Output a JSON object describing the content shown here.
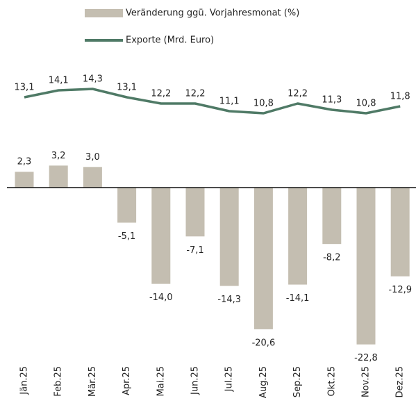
{
  "chart_data": {
    "type": "bar",
    "categories": [
      "Jän.25",
      "Feb.25",
      "Mär.25",
      "Apr.25",
      "Mai.25",
      "Jun.25",
      "Jul.25",
      "Aug.25",
      "Sep.25",
      "Okt.25",
      "Nov.25",
      "Dez.25"
    ],
    "series": [
      {
        "name": "Veränderung ggü. Vorjahresmonat (%)",
        "type": "bar",
        "color": "#c4beb1",
        "values": [
          2.3,
          3.2,
          3.0,
          -5.1,
          -14.0,
          -7.1,
          -14.3,
          -20.6,
          -14.1,
          -8.2,
          -22.8,
          -12.9
        ],
        "value_labels": [
          "2,3",
          "3,2",
          "3,0",
          "-5,1",
          "-14,0",
          "-7,1",
          "-14,3",
          "-20,6",
          "-14,1",
          "-8,2",
          "-22,8",
          "-12,9"
        ]
      },
      {
        "name": "Exporte (Mrd. Euro)",
        "type": "line",
        "color": "#4f7a66",
        "values": [
          13.1,
          14.1,
          14.3,
          13.1,
          12.2,
          12.2,
          11.1,
          10.8,
          12.2,
          11.3,
          10.8,
          11.8
        ],
        "value_labels": [
          "13,1",
          "14,1",
          "14,3",
          "13,1",
          "12,2",
          "12,2",
          "11,1",
          "10,8",
          "12,2",
          "11,3",
          "10,8",
          "11,8"
        ]
      }
    ],
    "legend": "top"
  }
}
